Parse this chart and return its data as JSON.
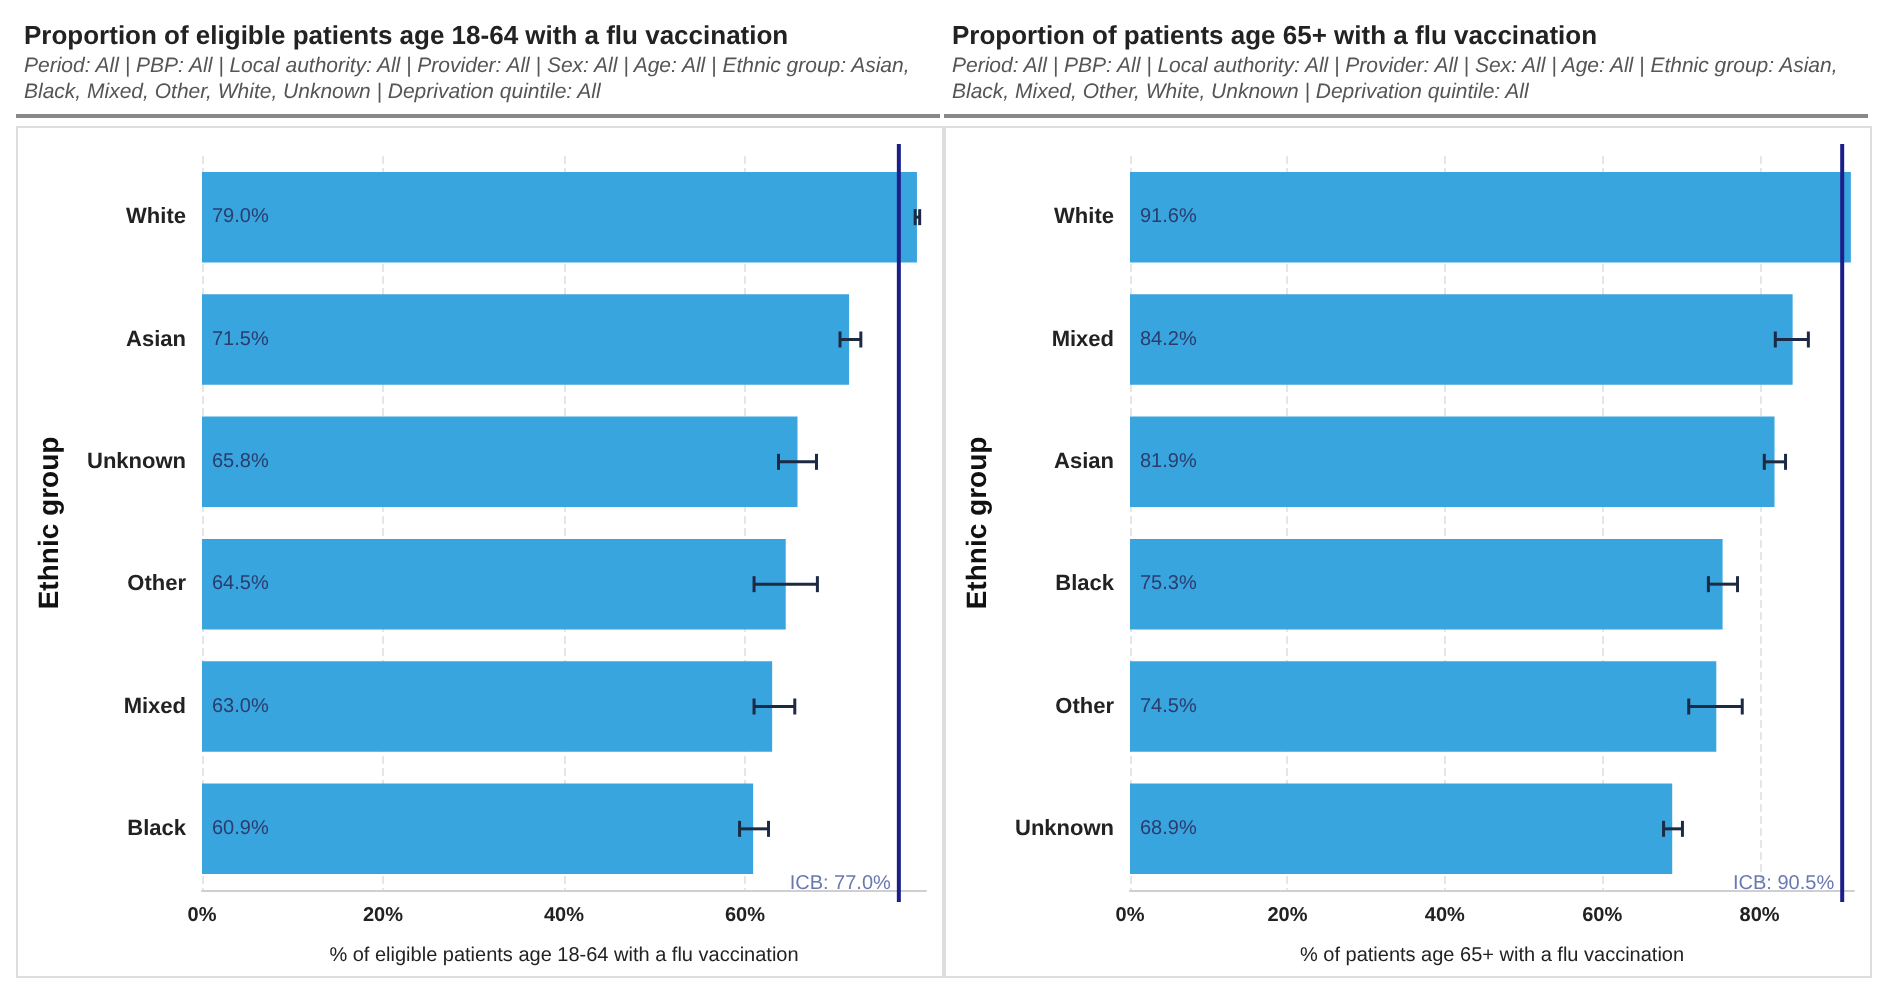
{
  "chart_data": [
    {
      "type": "bar",
      "orientation": "horizontal",
      "title": "Proportion of eligible patients age 18-64 with a flu vaccination",
      "subtitle": "Period: All | PBP: All | Local authority: All | Provider: All | Sex: All | Age: All | Ethnic group: Asian, Black, Mixed, Other, White, Unknown | Deprivation quintile: All",
      "xlabel": "% of eligible patients age 18-64 with a flu vaccination",
      "ylabel": "Ethnic group",
      "categories": [
        "White",
        "Asian",
        "Unknown",
        "Other",
        "Mixed",
        "Black"
      ],
      "values": [
        79.0,
        71.5,
        65.8,
        64.5,
        63.0,
        60.9
      ],
      "value_labels": [
        "79.0%",
        "71.5%",
        "65.8%",
        "64.5%",
        "63.0%",
        "60.9%"
      ],
      "errors": [
        [
          78.8,
          79.3
        ],
        [
          70.5,
          72.8
        ],
        [
          63.7,
          67.9
        ],
        [
          61.0,
          68.0
        ],
        [
          61.0,
          65.5
        ],
        [
          59.4,
          62.6
        ]
      ],
      "color": "#38a5df",
      "xlim": [
        0,
        80
      ],
      "xticks": [
        {
          "value": 0,
          "label": "0%"
        },
        {
          "value": 20,
          "label": "20%"
        },
        {
          "value": 40,
          "label": "40%"
        },
        {
          "value": 60,
          "label": "60%"
        }
      ],
      "ref_lines": [
        {
          "axis": "x",
          "value": 77.0,
          "label": "ICB: 77.0%",
          "color": "#1c1f8a"
        }
      ],
      "grid": "x"
    },
    {
      "type": "bar",
      "orientation": "horizontal",
      "title": "Proportion of patients age 65+ with a flu vaccination",
      "subtitle": "Period: All | PBP: All | Local authority: All | Provider: All | Sex: All | Age: All | Ethnic group: Asian, Black, Mixed, Other, White, Unknown | Deprivation quintile: All",
      "xlabel": "% of patients age 65+ with a flu vaccination",
      "ylabel": "Ethnic group",
      "categories": [
        "White",
        "Mixed",
        "Asian",
        "Black",
        "Other",
        "Unknown"
      ],
      "values": [
        91.6,
        84.2,
        81.9,
        75.3,
        74.5,
        68.9
      ],
      "value_labels": [
        "91.6%",
        "84.2%",
        "81.9%",
        "75.3%",
        "74.5%",
        "68.9%"
      ],
      "errors": [
        null,
        [
          82.0,
          86.2
        ],
        [
          80.6,
          83.3
        ],
        [
          73.5,
          77.2
        ],
        [
          71.0,
          77.8
        ],
        [
          67.8,
          70.2
        ]
      ],
      "color": "#38a5df",
      "xlim": [
        0,
        92
      ],
      "xticks": [
        {
          "value": 0,
          "label": "0%"
        },
        {
          "value": 20,
          "label": "20%"
        },
        {
          "value": 40,
          "label": "40%"
        },
        {
          "value": 60,
          "label": "60%"
        },
        {
          "value": 80,
          "label": "80%"
        }
      ],
      "ref_lines": [
        {
          "axis": "x",
          "value": 90.5,
          "label": "ICB: 90.5%",
          "color": "#1c1f8a"
        }
      ],
      "grid": "x"
    }
  ]
}
